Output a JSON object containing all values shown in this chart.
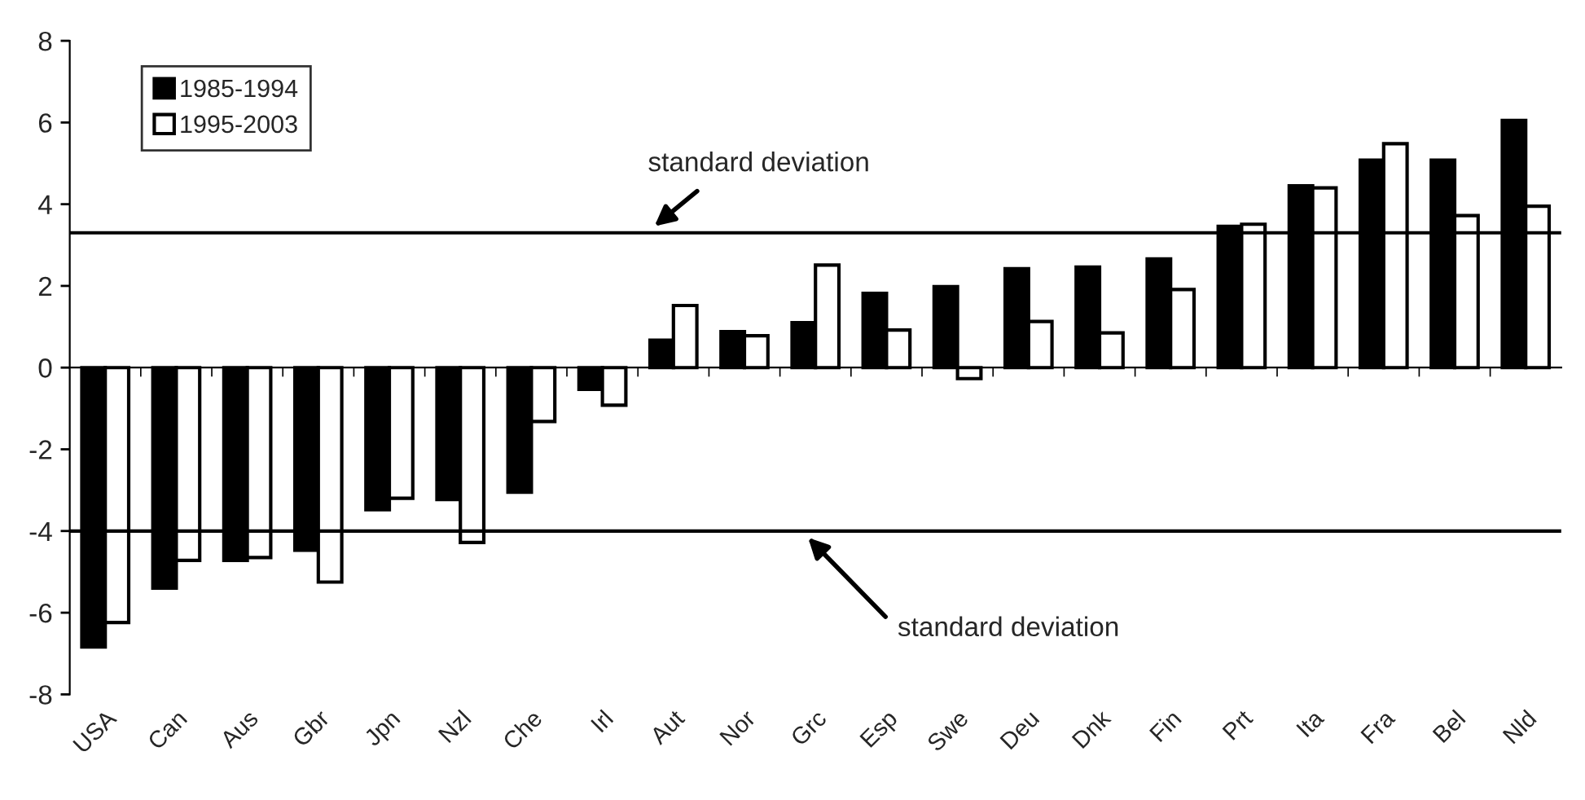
{
  "chart_data": {
    "type": "bar",
    "categories": [
      "USA",
      "Can",
      "Aus",
      "Gbr",
      "Jpn",
      "Nzl",
      "Che",
      "Irl",
      "Aut",
      "Nor",
      "Grc",
      "Esp",
      "Swe",
      "Deu",
      "Dnk",
      "Fin",
      "Prt",
      "Ita",
      "Fra",
      "Bel",
      "Nld"
    ],
    "series": [
      {
        "name": "1985-1994",
        "color": "#000000",
        "values": [
          -6.84,
          -5.4,
          -4.72,
          -4.47,
          -3.48,
          -3.23,
          -3.05,
          -0.53,
          0.67,
          0.88,
          1.1,
          1.82,
          1.98,
          2.42,
          2.46,
          2.66,
          3.46,
          4.45,
          5.08,
          5.08,
          6.05
        ]
      },
      {
        "name": "1995-2003",
        "color": "#ffffff",
        "values": [
          -6.24,
          -4.72,
          -4.65,
          -5.25,
          -3.2,
          -4.28,
          -1.32,
          -0.92,
          1.52,
          0.78,
          2.51,
          0.92,
          -0.27,
          1.13,
          0.85,
          1.91,
          3.51,
          4.4,
          5.48,
          3.72,
          3.95
        ]
      }
    ],
    "ylim": [
      -8,
      8
    ],
    "yticks": [
      -8,
      -6,
      -4,
      -2,
      0,
      2,
      4,
      6,
      8
    ],
    "ref_lines": [
      {
        "axis": "y",
        "value": 3.3,
        "label": "standard deviation",
        "color": "#000000"
      },
      {
        "axis": "y",
        "value": -4,
        "label": "standard deviation",
        "color": "#000000"
      }
    ],
    "legend": "top left",
    "grid": false
  }
}
